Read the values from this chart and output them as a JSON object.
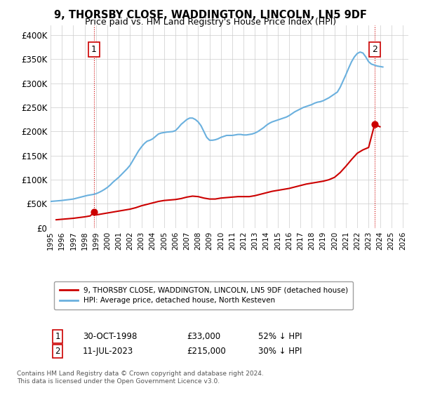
{
  "title": "9, THORSBY CLOSE, WADDINGTON, LINCOLN, LN5 9DF",
  "subtitle": "Price paid vs. HM Land Registry's House Price Index (HPI)",
  "legend_line1": "9, THORSBY CLOSE, WADDINGTON, LINCOLN, LN5 9DF (detached house)",
  "legend_line2": "HPI: Average price, detached house, North Kesteven",
  "footnote": "Contains HM Land Registry data © Crown copyright and database right 2024.\nThis data is licensed under the Open Government Licence v3.0.",
  "point1_label": "1",
  "point1_date": "30-OCT-1998",
  "point1_price": "£33,000",
  "point1_hpi": "52% ↓ HPI",
  "point2_label": "2",
  "point2_date": "11-JUL-2023",
  "point2_price": "£215,000",
  "point2_hpi": "30% ↓ HPI",
  "hpi_color": "#6ab0de",
  "price_color": "#cc0000",
  "point_color": "#cc0000",
  "vline_color": "#cc0000",
  "background_color": "#ffffff",
  "grid_color": "#cccccc",
  "ylim": [
    0,
    420000
  ],
  "yticks": [
    0,
    50000,
    100000,
    150000,
    200000,
    250000,
    300000,
    350000,
    400000
  ],
  "xlim_start": 1995.0,
  "xlim_end": 2026.5,
  "point1_x": 1998.83,
  "point1_y": 33000,
  "point2_x": 2023.53,
  "point2_y": 215000,
  "hpi_years": [
    1995.0,
    1995.25,
    1995.5,
    1995.75,
    1996.0,
    1996.25,
    1996.5,
    1996.75,
    1997.0,
    1997.25,
    1997.5,
    1997.75,
    1998.0,
    1998.25,
    1998.5,
    1998.75,
    1999.0,
    1999.25,
    1999.5,
    1999.75,
    2000.0,
    2000.25,
    2000.5,
    2000.75,
    2001.0,
    2001.25,
    2001.5,
    2001.75,
    2002.0,
    2002.25,
    2002.5,
    2002.75,
    2003.0,
    2003.25,
    2003.5,
    2003.75,
    2004.0,
    2004.25,
    2004.5,
    2004.75,
    2005.0,
    2005.25,
    2005.5,
    2005.75,
    2006.0,
    2006.25,
    2006.5,
    2006.75,
    2007.0,
    2007.25,
    2007.5,
    2007.75,
    2008.0,
    2008.25,
    2008.5,
    2008.75,
    2009.0,
    2009.25,
    2009.5,
    2009.75,
    2010.0,
    2010.25,
    2010.5,
    2010.75,
    2011.0,
    2011.25,
    2011.5,
    2011.75,
    2012.0,
    2012.25,
    2012.5,
    2012.75,
    2013.0,
    2013.25,
    2013.5,
    2013.75,
    2014.0,
    2014.25,
    2014.5,
    2014.75,
    2015.0,
    2015.25,
    2015.5,
    2015.75,
    2016.0,
    2016.25,
    2016.5,
    2016.75,
    2017.0,
    2017.25,
    2017.5,
    2017.75,
    2018.0,
    2018.25,
    2018.5,
    2018.75,
    2019.0,
    2019.25,
    2019.5,
    2019.75,
    2020.0,
    2020.25,
    2020.5,
    2020.75,
    2021.0,
    2021.25,
    2021.5,
    2021.75,
    2022.0,
    2022.25,
    2022.5,
    2022.75,
    2023.0,
    2023.25,
    2023.5,
    2023.75,
    2024.0,
    2024.25
  ],
  "hpi_values": [
    55000,
    55500,
    56000,
    56500,
    57000,
    57800,
    58500,
    59200,
    60000,
    61500,
    63000,
    64500,
    66000,
    67500,
    68500,
    69500,
    71000,
    73500,
    76500,
    80000,
    84000,
    89000,
    95000,
    100000,
    105000,
    111000,
    117000,
    123000,
    130000,
    140000,
    150000,
    160000,
    168000,
    175000,
    180000,
    182000,
    185000,
    190000,
    195000,
    197000,
    198000,
    199000,
    199500,
    200000,
    202000,
    208000,
    215000,
    220000,
    225000,
    228000,
    228000,
    225000,
    220000,
    212000,
    200000,
    188000,
    182000,
    182000,
    183000,
    185000,
    188000,
    190000,
    192000,
    192000,
    192000,
    193000,
    194000,
    194000,
    193000,
    193000,
    194000,
    195000,
    197000,
    200000,
    204000,
    208000,
    213000,
    217000,
    220000,
    222000,
    224000,
    226000,
    228000,
    230000,
    233000,
    237000,
    241000,
    244000,
    247000,
    250000,
    252000,
    254000,
    256000,
    259000,
    261000,
    262000,
    264000,
    267000,
    270000,
    274000,
    278000,
    282000,
    292000,
    305000,
    318000,
    332000,
    345000,
    355000,
    362000,
    365000,
    363000,
    355000,
    345000,
    340000,
    338000,
    336000,
    335000,
    334000
  ],
  "sold_years": [
    1995.5,
    1996.0,
    1996.5,
    1997.0,
    1997.5,
    1998.0,
    1998.5,
    1998.83,
    1999.0,
    1999.5,
    2000.0,
    2000.5,
    2001.0,
    2001.5,
    2002.0,
    2002.5,
    2003.0,
    2003.5,
    2004.0,
    2004.5,
    2005.0,
    2005.5,
    2006.0,
    2006.5,
    2007.0,
    2007.5,
    2008.0,
    2008.5,
    2009.0,
    2009.5,
    2010.0,
    2010.5,
    2011.0,
    2011.5,
    2012.0,
    2012.5,
    2013.0,
    2013.5,
    2014.0,
    2014.5,
    2015.0,
    2015.5,
    2016.0,
    2016.5,
    2017.0,
    2017.5,
    2018.0,
    2018.5,
    2019.0,
    2019.5,
    2020.0,
    2020.5,
    2021.0,
    2021.5,
    2022.0,
    2022.5,
    2023.0,
    2023.53,
    2024.0
  ],
  "sold_values": [
    17000,
    18000,
    19000,
    20000,
    21500,
    23000,
    25000,
    33000,
    27000,
    29000,
    31000,
    33000,
    35000,
    37000,
    39000,
    42000,
    46000,
    49000,
    52000,
    55000,
    57000,
    58000,
    59000,
    61000,
    64000,
    66000,
    65000,
    62000,
    60000,
    60000,
    62000,
    63000,
    64000,
    65000,
    65000,
    65000,
    67000,
    70000,
    73000,
    76000,
    78000,
    80000,
    82000,
    85000,
    88000,
    91000,
    93000,
    95000,
    97000,
    100000,
    105000,
    115000,
    128000,
    142000,
    155000,
    162000,
    167000,
    215000,
    210000
  ]
}
